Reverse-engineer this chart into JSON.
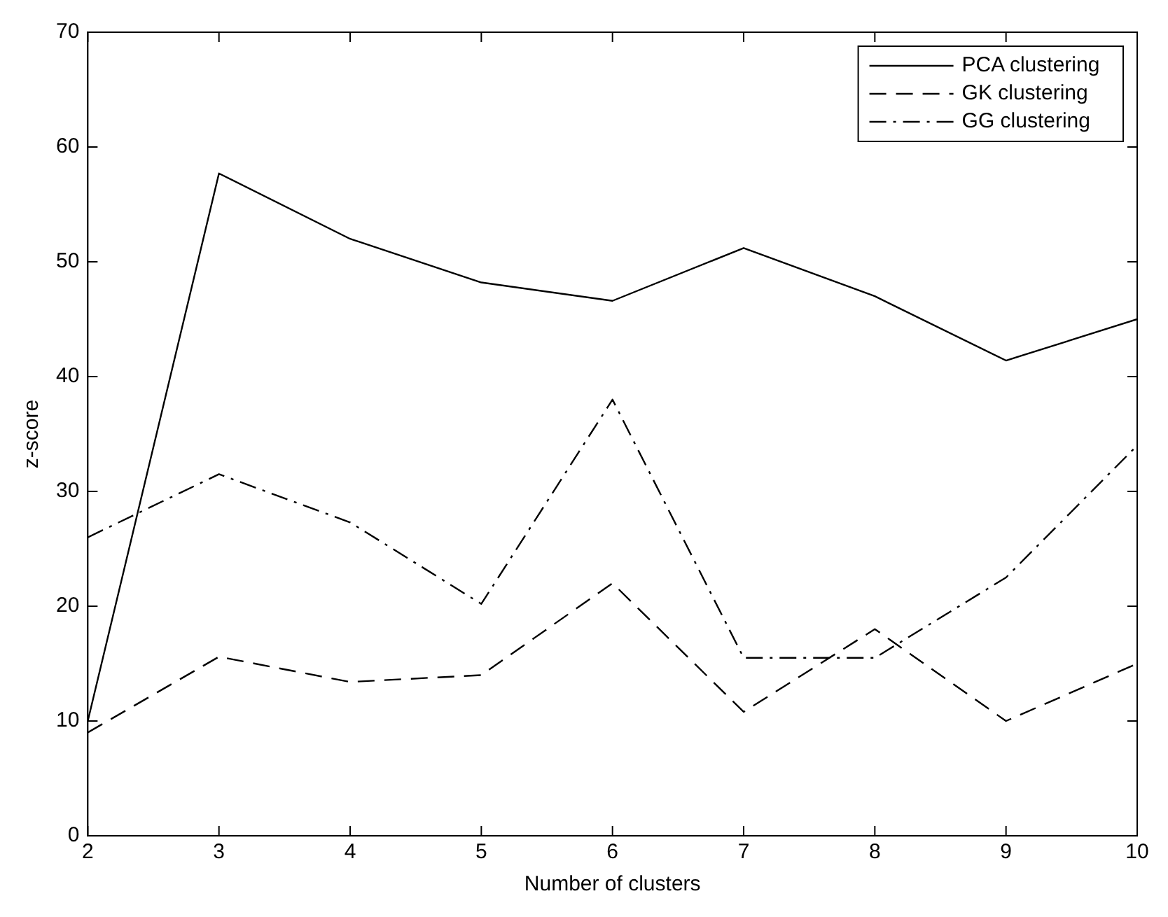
{
  "chart_data": {
    "type": "line",
    "xlabel": "Number of clusters",
    "ylabel": "z-score",
    "x": [
      2,
      3,
      4,
      5,
      6,
      7,
      8,
      9,
      10
    ],
    "series": [
      {
        "name": "PCA clustering",
        "color": "#000000",
        "line_style": "solid",
        "values": [
          10,
          57.7,
          52,
          48.2,
          46.6,
          51.2,
          47,
          41.4,
          45
        ]
      },
      {
        "name": "GK clustering",
        "color": "#000000",
        "line_style": "dashed",
        "values": [
          9,
          15.6,
          13.4,
          14,
          22,
          10.8,
          18,
          10,
          15
        ]
      },
      {
        "name": "GG clustering",
        "color": "#000000",
        "line_style": "dashdot",
        "values": [
          26,
          31.5,
          27.3,
          20.2,
          38,
          15.5,
          15.5,
          22.5,
          34
        ]
      }
    ],
    "xlim": [
      2,
      10
    ],
    "xticks": [
      2,
      3,
      4,
      5,
      6,
      7,
      8,
      9,
      10
    ],
    "ylim": [
      0,
      70
    ],
    "yticks": [
      0,
      10,
      20,
      30,
      40,
      50,
      60,
      70
    ],
    "grid": false,
    "legend": "top right",
    "marker": "none"
  }
}
